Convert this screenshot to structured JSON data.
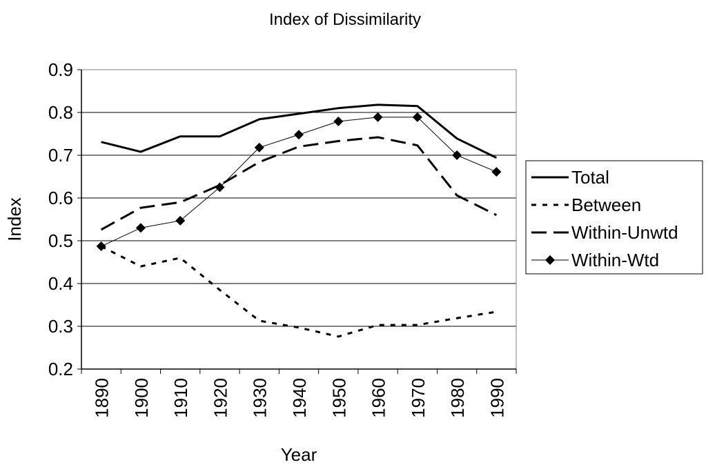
{
  "chart_data": {
    "type": "line",
    "title": "Index of Dissimilarity",
    "x_label": "Year",
    "y_label": "Index",
    "categories": [
      "1890",
      "1900",
      "1910",
      "1920",
      "1930",
      "1940",
      "1950",
      "1960",
      "1970",
      "1980",
      "1990"
    ],
    "series": [
      {
        "name": "Total",
        "color": "#000000",
        "dash": "solid",
        "width": 3,
        "values": [
          0.731,
          0.708,
          0.744,
          0.744,
          0.784,
          0.797,
          0.81,
          0.818,
          0.815,
          0.739,
          0.694
        ]
      },
      {
        "name": "Between",
        "color": "#000000",
        "dash": "dotted",
        "width": 3,
        "values": [
          0.487,
          0.44,
          0.46,
          0.385,
          0.313,
          0.297,
          0.276,
          0.303,
          0.303,
          0.319,
          0.334
        ]
      },
      {
        "name": "Within-Unwtd",
        "color": "#000000",
        "dash": "dashed",
        "width": 3,
        "values": [
          0.526,
          0.577,
          0.59,
          0.63,
          0.684,
          0.72,
          0.733,
          0.742,
          0.723,
          0.606,
          0.56
        ]
      },
      {
        "name": "Within-Wtd",
        "color": "#000000",
        "dash": "solid",
        "width": 1,
        "marker": "diamond",
        "values": [
          0.487,
          0.53,
          0.547,
          0.625,
          0.718,
          0.748,
          0.779,
          0.789,
          0.789,
          0.7,
          0.661
        ]
      }
    ],
    "ylim": [
      0.2,
      0.9
    ],
    "yticks": [
      0.2,
      0.3,
      0.4,
      0.5,
      0.6,
      0.7,
      0.8,
      0.9
    ],
    "grid": true,
    "legend": "right"
  }
}
